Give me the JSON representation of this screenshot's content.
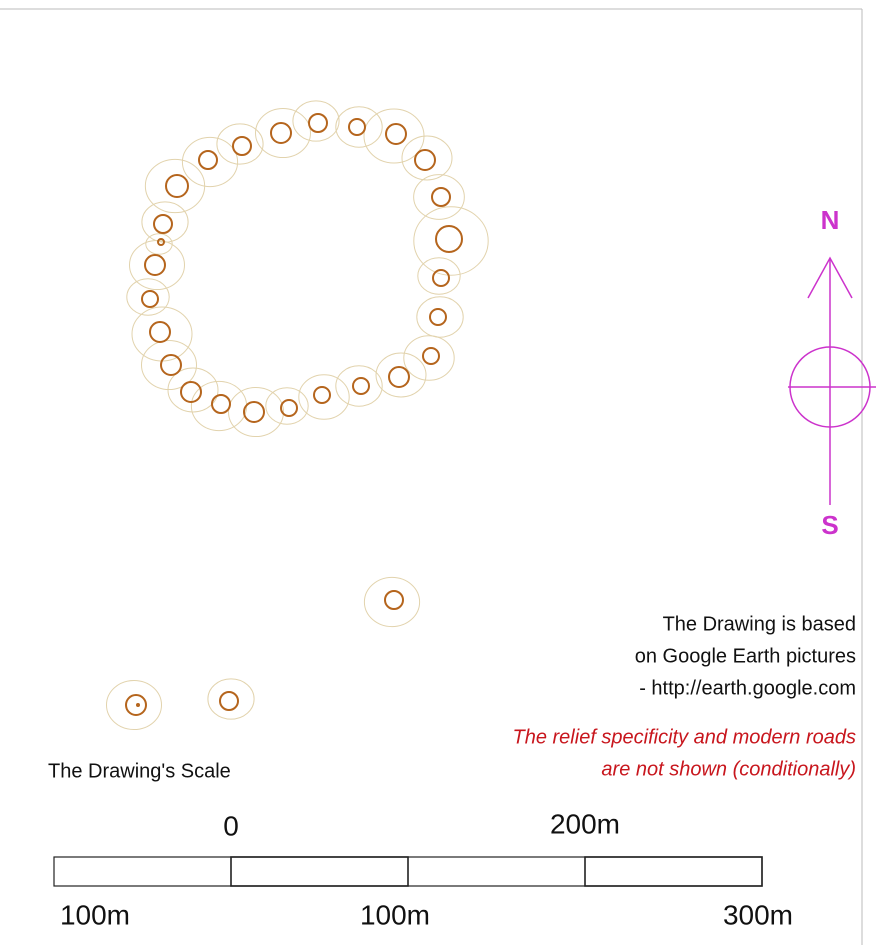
{
  "compass": {
    "north": "N",
    "south": "S"
  },
  "notes": [
    "The Drawing is based",
    "on Google Earth pictures",
    "- http://earth.google.com"
  ],
  "disclaimer": [
    "The relief specificity and modern roads",
    "are not shown (conditionally)"
  ],
  "scale": {
    "title": "The Drawing's Scale",
    "top_labels": [
      "0",
      "200m"
    ],
    "bottom_labels": [
      "100m",
      "100m",
      "300m"
    ]
  }
}
